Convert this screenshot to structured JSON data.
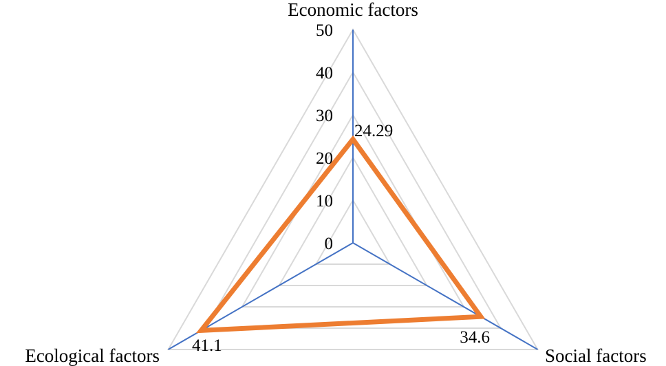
{
  "chart_data": {
    "type": "radar",
    "categories": [
      "Economic factors",
      "Social factors",
      "Ecological factors"
    ],
    "series": [
      {
        "values": [
          24.29,
          34.6,
          41.1
        ],
        "color": "#ED7D31"
      }
    ],
    "data_labels": [
      "24.29",
      "34.6",
      "41.1"
    ],
    "rlim": [
      0,
      50
    ],
    "ticks": [
      0,
      10,
      20,
      30,
      40,
      50
    ],
    "grid": true,
    "grid_color": "#D9D9D9",
    "axis_color": "#4472C4"
  }
}
